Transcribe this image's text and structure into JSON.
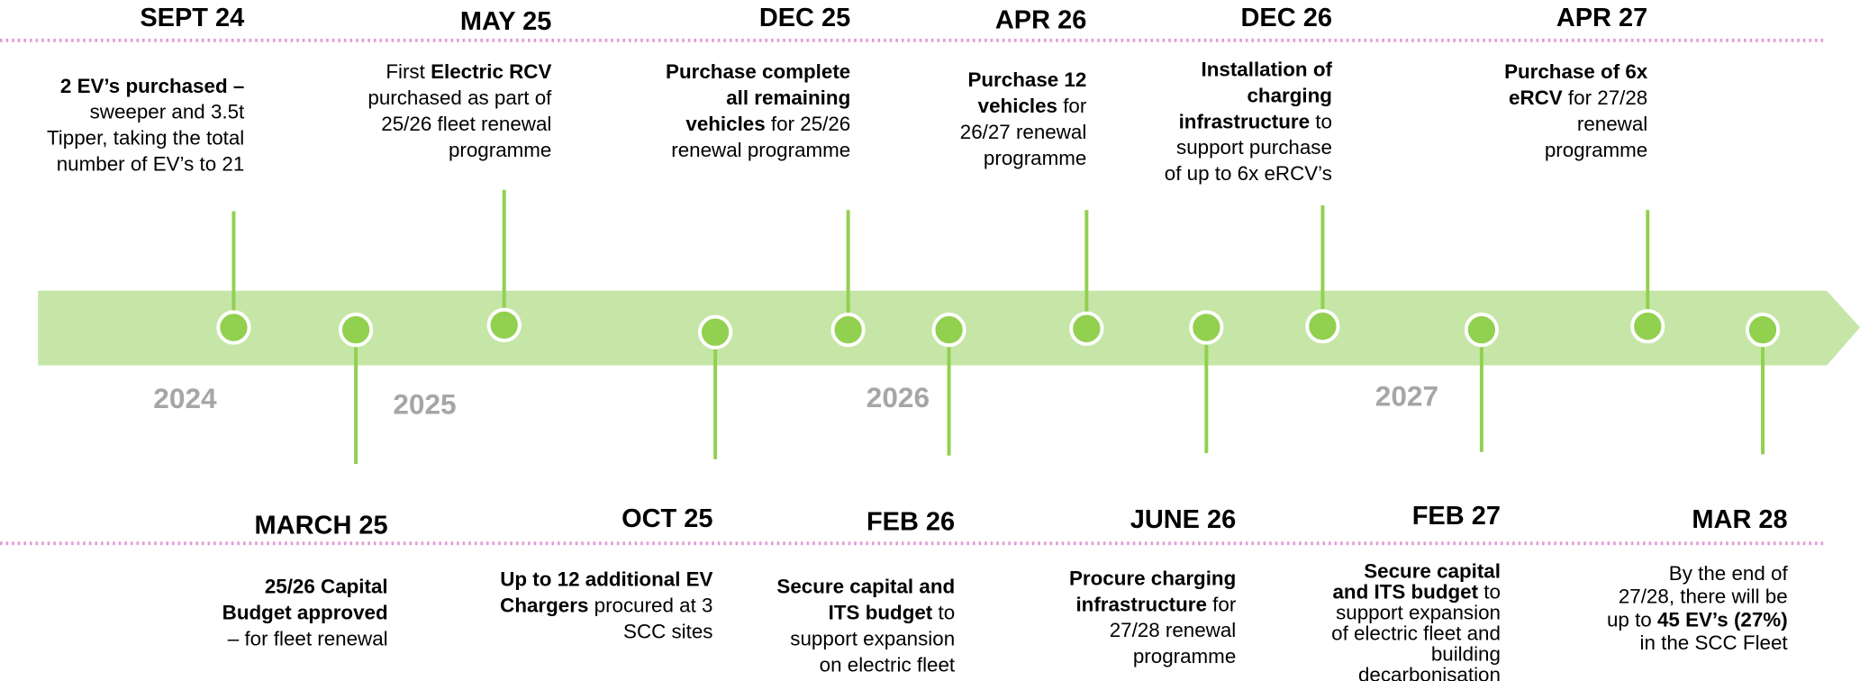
{
  "years": [
    "2024",
    "2025",
    "2026",
    "2027"
  ],
  "top_events": [
    {
      "date": "SEPT 24",
      "lines": [
        [
          {
            "text": "2 EV’s purchased –",
            "bold": true
          }
        ],
        [
          "sweeper and 3.5t"
        ],
        [
          "Tipper, taking the total"
        ],
        [
          "number of EV’s to 21"
        ]
      ]
    },
    {
      "date": "MAY 25",
      "lines": [
        [
          "First ",
          {
            "text": "Electric RCV",
            "bold": true
          }
        ],
        [
          "purchased as part of"
        ],
        [
          "25/26 fleet renewal"
        ],
        [
          "programme"
        ]
      ]
    },
    {
      "date": "DEC 25",
      "lines": [
        [
          {
            "text": "Purchase complete",
            "bold": true
          }
        ],
        [
          {
            "text": "all remaining",
            "bold": true
          }
        ],
        [
          {
            "text": "vehicles",
            "bold": true
          },
          " for 25/26"
        ],
        [
          "renewal programme"
        ]
      ]
    },
    {
      "date": "APR 26",
      "lines": [
        [
          {
            "text": "Purchase 12",
            "bold": true
          }
        ],
        [
          {
            "text": "vehicles",
            "bold": true
          },
          " for"
        ],
        [
          "26/27 renewal"
        ],
        [
          "programme"
        ]
      ]
    },
    {
      "date": "DEC 26",
      "lines": [
        [
          {
            "text": "Installation of",
            "bold": true
          }
        ],
        [
          {
            "text": "charging",
            "bold": true
          }
        ],
        [
          {
            "text": "infrastructure",
            "bold": true
          },
          " to"
        ],
        [
          "support purchase"
        ],
        [
          "of up to 6x eRCV’s"
        ]
      ]
    },
    {
      "date": "APR 27",
      "lines": [
        [
          {
            "text": "Purchase of 6x",
            "bold": true
          }
        ],
        [
          {
            "text": "eRCV",
            "bold": true
          },
          " for 27/28"
        ],
        [
          "renewal"
        ],
        [
          "programme"
        ]
      ]
    }
  ],
  "bottom_events": [
    {
      "date": "MARCH 25",
      "lines": [
        [
          {
            "text": "25/26 Capital",
            "bold": true
          }
        ],
        [
          {
            "text": "Budget approved",
            "bold": true
          }
        ],
        [
          "– for fleet renewal"
        ]
      ]
    },
    {
      "date": "OCT 25",
      "lines": [
        [
          {
            "text": "Up to 12 additional EV",
            "bold": true
          }
        ],
        [
          {
            "text": "Chargers",
            "bold": true
          },
          " procured at 3"
        ],
        [
          "SCC sites"
        ]
      ]
    },
    {
      "date": "FEB 26",
      "lines": [
        [
          {
            "text": "Secure capital and",
            "bold": true
          }
        ],
        [
          {
            "text": "ITS budget",
            "bold": true
          },
          " to"
        ],
        [
          "support expansion"
        ],
        [
          "on electric fleet"
        ]
      ]
    },
    {
      "date": "JUNE 26",
      "lines": [
        [
          {
            "text": "Procure charging",
            "bold": true
          }
        ],
        [
          {
            "text": "infrastructure",
            "bold": true
          },
          " for"
        ],
        [
          "27/28 renewal"
        ],
        [
          "programme"
        ]
      ]
    },
    {
      "date": "FEB 27",
      "lines": [
        [
          {
            "text": "Secure capital",
            "bold": true
          }
        ],
        [
          {
            "text": "and ITS budget",
            "bold": true
          },
          " to"
        ],
        [
          "support expansion"
        ],
        [
          "of electric fleet and"
        ],
        [
          "building"
        ],
        [
          "decarbonisation"
        ]
      ]
    },
    {
      "date": "MAR 28",
      "lines": [
        [
          "By the end of"
        ],
        [
          "27/28, there will be"
        ],
        [
          "up to ",
          {
            "text": "45 EV’s (27%)",
            "bold": true
          }
        ],
        [
          "in the SCC Fleet"
        ]
      ]
    }
  ]
}
